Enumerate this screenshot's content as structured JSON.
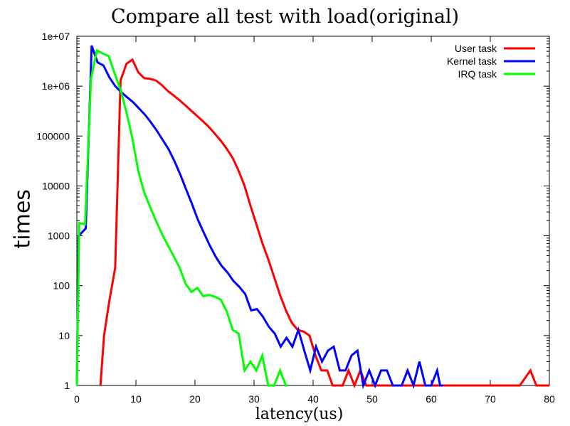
{
  "chart_data": {
    "type": "line",
    "title": "Compare all test with load(original)",
    "xlabel": "latency(us)",
    "ylabel": "times",
    "xlim": [
      0,
      80
    ],
    "ylim": [
      1,
      10000000
    ],
    "yscale": "log",
    "x_ticks": [
      0,
      10,
      20,
      30,
      40,
      50,
      60,
      70,
      80
    ],
    "y_ticks": [
      {
        "value": 1,
        "label": "1"
      },
      {
        "value": 10,
        "label": "10"
      },
      {
        "value": 100,
        "label": "100"
      },
      {
        "value": 1000,
        "label": "1000"
      },
      {
        "value": 10000,
        "label": "10000"
      },
      {
        "value": 100000,
        "label": "100000"
      },
      {
        "value": 1000000,
        "label": "1e+06"
      },
      {
        "value": 10000000,
        "label": "1e+07"
      }
    ],
    "grid": false,
    "legend_position": "top-right",
    "series": [
      {
        "name": "User task",
        "color": "#ff0000",
        "points": [
          [
            4,
            1
          ],
          [
            4.6,
            10
          ],
          [
            5.5,
            50
          ],
          [
            6.5,
            230
          ],
          [
            7.4,
            1300000
          ],
          [
            8.4,
            2800000
          ],
          [
            9.4,
            3400000
          ],
          [
            10.4,
            1900000
          ],
          [
            11.4,
            1450000
          ],
          [
            12.4,
            1400000
          ],
          [
            13.4,
            1300000
          ],
          [
            14.4,
            1050000
          ],
          [
            15.4,
            800000
          ],
          [
            16.4,
            650000
          ],
          [
            17.4,
            520000
          ],
          [
            18.4,
            410000
          ],
          [
            19.4,
            320000
          ],
          [
            20.4,
            250000
          ],
          [
            21.4,
            195000
          ],
          [
            22.4,
            150000
          ],
          [
            23.4,
            110000
          ],
          [
            24.4,
            80000
          ],
          [
            25.4,
            55000
          ],
          [
            26.4,
            36000
          ],
          [
            27.4,
            20000
          ],
          [
            28.4,
            10000
          ],
          [
            29.4,
            4000
          ],
          [
            30.4,
            1700
          ],
          [
            31.4,
            720
          ],
          [
            32.4,
            340
          ],
          [
            33.4,
            150
          ],
          [
            34.4,
            65
          ],
          [
            35.4,
            32
          ],
          [
            36.4,
            18
          ],
          [
            37.4,
            13
          ],
          [
            38.4,
            12
          ],
          [
            39.4,
            10
          ],
          [
            40.4,
            4
          ],
          [
            41.4,
            2
          ],
          [
            42.4,
            2
          ],
          [
            43.3,
            1
          ],
          [
            45,
            1
          ],
          [
            46,
            2
          ],
          [
            47,
            1
          ],
          [
            48,
            2
          ],
          [
            49,
            1
          ],
          [
            75,
            1
          ],
          [
            76.8,
            2
          ],
          [
            77.8,
            1
          ],
          [
            80,
            1
          ]
        ]
      },
      {
        "name": "Kernel task",
        "color": "#0000ff",
        "points": [
          [
            0,
            1
          ],
          [
            0.3,
            1000
          ],
          [
            1.5,
            1400
          ],
          [
            2.5,
            6500000
          ],
          [
            3.5,
            3000000
          ],
          [
            4.5,
            2600000
          ],
          [
            5.5,
            1500000
          ],
          [
            6.5,
            1000000
          ],
          [
            7.5,
            760000
          ],
          [
            8.5,
            600000
          ],
          [
            9.5,
            480000
          ],
          [
            10.5,
            360000
          ],
          [
            11.5,
            270000
          ],
          [
            12.5,
            190000
          ],
          [
            13.5,
            130000
          ],
          [
            14.5,
            85000
          ],
          [
            15.5,
            55000
          ],
          [
            16.5,
            32000
          ],
          [
            17.5,
            17000
          ],
          [
            18.5,
            8500
          ],
          [
            19.5,
            4300
          ],
          [
            20.5,
            2100
          ],
          [
            21.5,
            1150
          ],
          [
            22.5,
            640
          ],
          [
            23.5,
            380
          ],
          [
            24.5,
            250
          ],
          [
            25.5,
            185
          ],
          [
            26.5,
            125
          ],
          [
            27.5,
            95
          ],
          [
            28.5,
            68
          ],
          [
            29.5,
            32
          ],
          [
            30.5,
            34
          ],
          [
            31.5,
            24
          ],
          [
            32.5,
            15
          ],
          [
            33.5,
            11
          ],
          [
            34.5,
            6
          ],
          [
            35.5,
            9
          ],
          [
            36.5,
            6
          ],
          [
            37.5,
            13
          ],
          [
            38.5,
            5
          ],
          [
            39.5,
            2
          ],
          [
            40.5,
            6
          ],
          [
            41.5,
            3
          ],
          [
            42.5,
            5
          ],
          [
            43.5,
            6
          ],
          [
            44.5,
            2
          ],
          [
            45.5,
            2
          ],
          [
            46.5,
            4
          ],
          [
            47.5,
            5
          ],
          [
            48.5,
            1
          ],
          [
            49.5,
            2
          ],
          [
            50.5,
            1
          ],
          [
            51.5,
            2
          ],
          [
            52.5,
            2
          ],
          [
            53.5,
            1
          ],
          [
            55,
            1
          ],
          [
            56,
            2
          ],
          [
            57,
            1
          ],
          [
            58,
            3
          ],
          [
            59,
            1
          ],
          [
            60,
            1
          ],
          [
            61,
            2
          ],
          [
            61.5,
            1
          ],
          [
            62,
            1
          ]
        ]
      },
      {
        "name": "IRQ task",
        "color": "#00ff00",
        "points": [
          [
            0,
            1
          ],
          [
            0.4,
            1800
          ],
          [
            1.4,
            1700
          ],
          [
            2.4,
            1400000
          ],
          [
            3.4,
            5200000
          ],
          [
            4.4,
            4500000
          ],
          [
            5.4,
            4000000
          ],
          [
            6.4,
            1800000
          ],
          [
            7.4,
            850000
          ],
          [
            8.4,
            300000
          ],
          [
            9.4,
            90000
          ],
          [
            10.4,
            20000
          ],
          [
            11.4,
            7500
          ],
          [
            12.4,
            3800
          ],
          [
            13.4,
            2000
          ],
          [
            14.4,
            1100
          ],
          [
            15.4,
            650
          ],
          [
            16.4,
            390
          ],
          [
            17.4,
            230
          ],
          [
            18.4,
            110
          ],
          [
            19.4,
            75
          ],
          [
            20.4,
            90
          ],
          [
            21.4,
            62
          ],
          [
            22.4,
            65
          ],
          [
            23.4,
            60
          ],
          [
            24.4,
            52
          ],
          [
            25.4,
            30
          ],
          [
            26.4,
            13
          ],
          [
            27.4,
            11
          ],
          [
            28.4,
            2
          ],
          [
            29.4,
            3
          ],
          [
            30.4,
            2
          ],
          [
            31.4,
            4
          ],
          [
            32.4,
            1
          ],
          [
            33.4,
            1
          ],
          [
            34.4,
            2
          ],
          [
            35.4,
            1
          ],
          [
            35.7,
            1
          ]
        ]
      }
    ]
  }
}
